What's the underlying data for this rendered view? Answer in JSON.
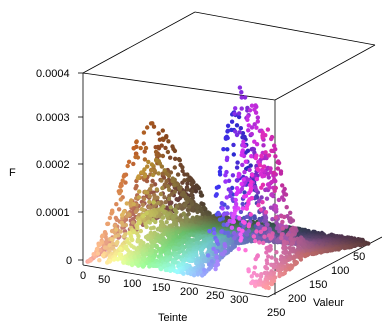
{
  "chart_data": {
    "type": "scatter3d",
    "title": "",
    "xlabel": "Teinte",
    "ylabel": "Valeur",
    "zlabel": "F",
    "xlim": [
      0,
      360
    ],
    "ylim": [
      0,
      255
    ],
    "zlim": [
      0,
      0.0004
    ],
    "x_ticks": [
      "0",
      "50",
      "100",
      "150",
      "200",
      "250",
      "300"
    ],
    "y_ticks": [
      "200",
      "150",
      "100",
      "50"
    ],
    "y_tick_values": [
      200,
      150,
      100,
      50
    ],
    "z_ticks": [
      "0",
      "0.0001",
      "0.0002",
      "0.0003",
      "0.0004"
    ],
    "z_corner_label": "250",
    "grid": false,
    "legend": "none",
    "colormap": "hue-value",
    "peaks": [
      {
        "hue": 25,
        "value": 140,
        "height": 0.0002,
        "spread_hue": 4,
        "spread_value": 60
      },
      {
        "hue": 40,
        "value": 150,
        "height": 0.00017,
        "spread_hue": 4,
        "spread_value": 55
      },
      {
        "hue": 15,
        "value": 110,
        "height": 9e-05,
        "spread_hue": 8,
        "spread_value": 70
      },
      {
        "hue": 55,
        "value": 170,
        "height": 8e-05,
        "spread_hue": 6,
        "spread_value": 50
      },
      {
        "hue": 245,
        "value": 200,
        "height": 0.0003,
        "spread_hue": 5,
        "spread_value": 35
      },
      {
        "hue": 270,
        "value": 215,
        "height": 0.00037,
        "spread_hue": 6,
        "spread_value": 30
      },
      {
        "hue": 290,
        "value": 210,
        "height": 0.00033,
        "spread_hue": 6,
        "spread_value": 30
      },
      {
        "hue": 310,
        "value": 205,
        "height": 0.00028,
        "spread_hue": 7,
        "spread_value": 35
      }
    ],
    "plateau": {
      "hue_start": 60,
      "hue_end": 360,
      "height": 4.5e-05
    }
  }
}
